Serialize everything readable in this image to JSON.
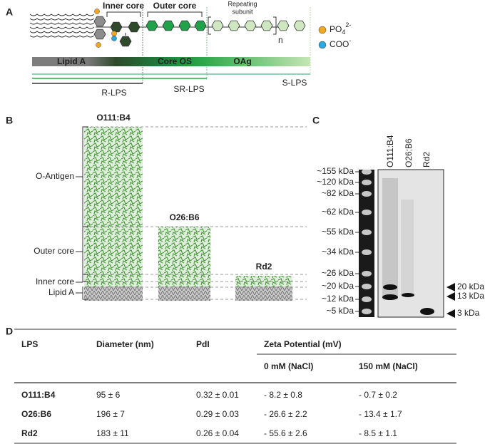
{
  "panel_a": {
    "label": "A",
    "inner_core": "Inner core",
    "outer_core": "Outer core",
    "repeating_subunit": [
      "Repeating",
      "subunit"
    ],
    "n": "n",
    "legend": [
      {
        "base": "PO",
        "sub": "4",
        "sup": "2-"
      },
      {
        "base": "COO",
        "sup": "-"
      }
    ],
    "bar": [
      "Lipid A",
      "Core OS",
      "OAg"
    ],
    "lps_types": [
      "R-LPS",
      "SR-LPS",
      "S-LPS"
    ]
  },
  "panel_b": {
    "label": "B",
    "strains": [
      "O111:B4",
      "O26:B6",
      "Rd2"
    ],
    "regions": [
      "O-Antigen",
      "Outer core",
      "Inner core",
      "Lipid A"
    ]
  },
  "panel_c": {
    "label": "C",
    "lanes": [
      "O111:B4",
      "O26:B6",
      "Rd2"
    ],
    "ladder": [
      "~155 kDa",
      "~120 kDa",
      "~82 kDa",
      "~62 kDa",
      "~55 kDa",
      "~34 kDa",
      "~26 kDa",
      "~20 kDa",
      "~12 kDa",
      "~5 kDa"
    ],
    "markers": [
      "20 kDa",
      "13 kDa",
      "3 kDa"
    ]
  },
  "panel_d": {
    "label": "D",
    "header": [
      "LPS",
      "Diameter (nm)",
      "PdI",
      "Zeta Potential (mV)"
    ],
    "subheader": [
      "0 mM (NaCl)",
      "150 mM (NaCl)"
    ],
    "rows": [
      [
        "O111:B4",
        "95 ± 6",
        "0.32 ± 0.01",
        "- 8.2 ± 0.8",
        "- 0.7 ± 0.2"
      ],
      [
        "O26:B6",
        "196 ± 7",
        "0.29 ± 0.03",
        "- 26.6 ± 2.2",
        "- 13.4 ± 1.7"
      ],
      [
        "Rd2",
        "183 ± 11",
        "0.26 ± 0.04",
        "- 55.6 ± 2.6",
        "- 8.5 ± 1.1"
      ]
    ]
  }
}
